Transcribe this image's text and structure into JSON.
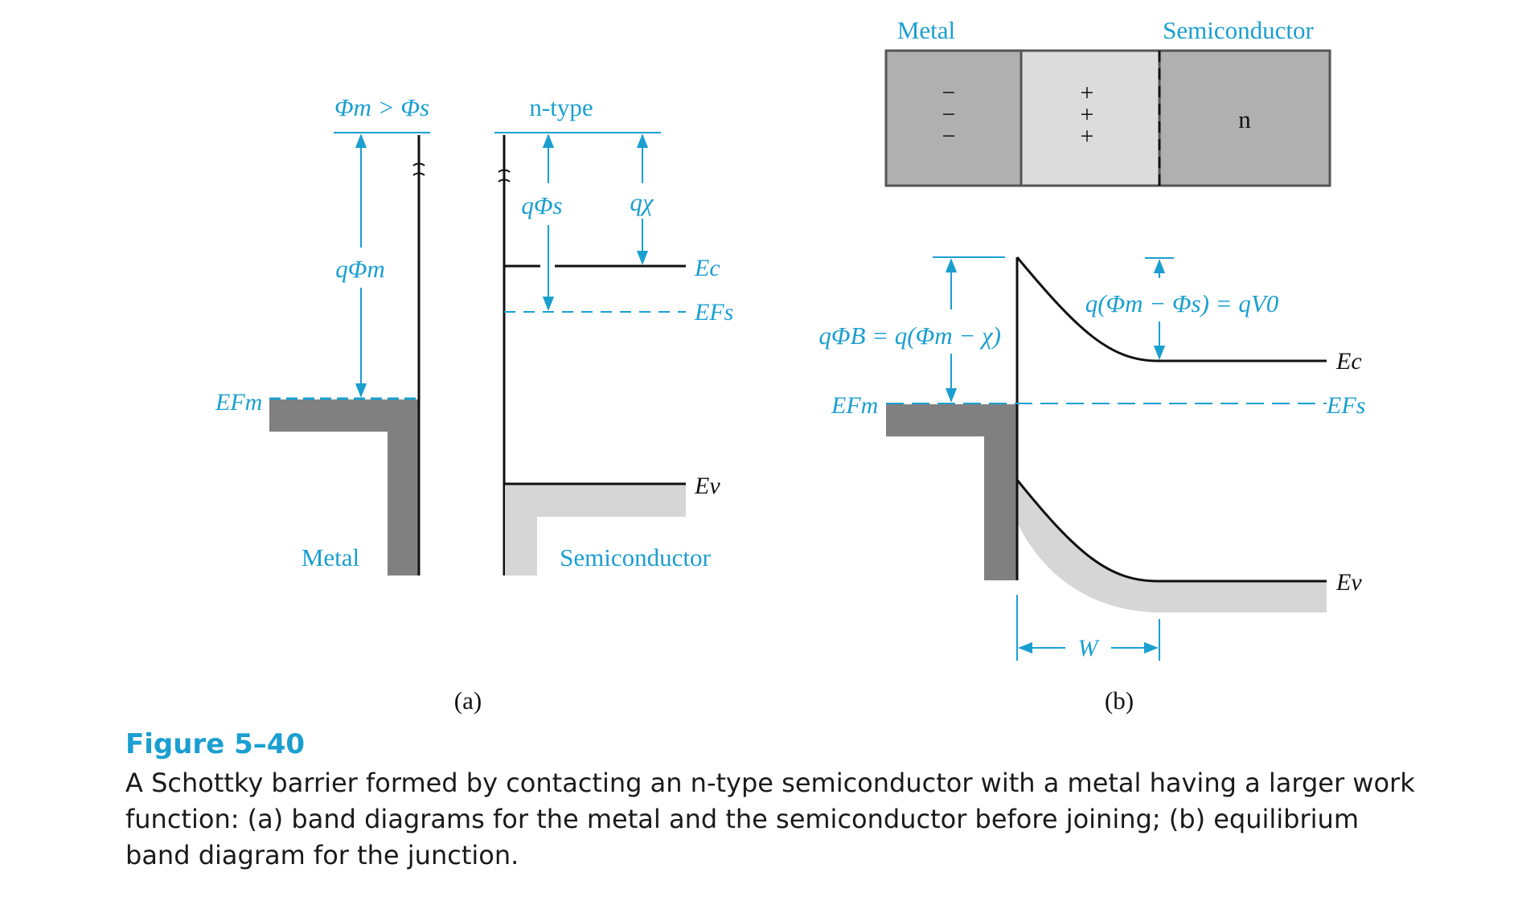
{
  "panel_a": {
    "left_top_label": "Φm > Φs",
    "right_top_label": "n-type",
    "q_phi_m": "qΦm",
    "q_phi_s": "qΦs",
    "q_chi": "qχ",
    "ec": "Ec",
    "efs": "EFs",
    "efm": "EFm",
    "ev": "Ev",
    "metal": "Metal",
    "semiconductor": "Semiconductor",
    "tag": "(a)"
  },
  "panel_b": {
    "metal_header": "Metal",
    "semiconductor_header": "Semiconductor",
    "minus_signs": [
      "−",
      "−",
      "−"
    ],
    "plus_signs": [
      "+",
      "+",
      "+"
    ],
    "n_label": "n",
    "barrier": "qΦB = q(Φm − χ)",
    "built_in": "q(Φm − Φs) = qV0",
    "ec": "Ec",
    "efs": "EFs",
    "efm": "EFm",
    "ev": "Ev",
    "width": "W",
    "tag": "(b)"
  },
  "caption": {
    "title": "Figure 5–40",
    "body": "A Schottky barrier formed by contacting an n-type semiconductor with a metal having a larger work function: (a) band diagrams for the metal and the semiconductor before joining; (b) equilibrium band diagram for the junction."
  },
  "colors": {
    "accent": "#1a9fd0",
    "metal_fill": "#808080",
    "valence_fill": "#d6d6d6",
    "slab_dark": "#b0b0b0",
    "slab_light": "#dcdcdc"
  }
}
